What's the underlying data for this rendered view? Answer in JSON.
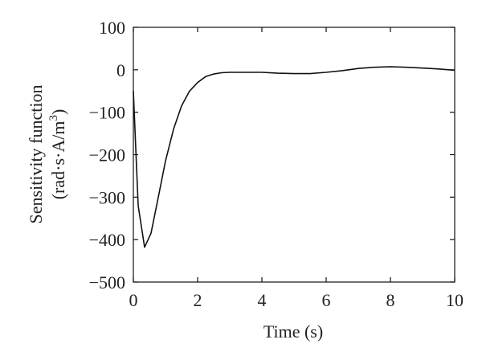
{
  "chart_data": {
    "type": "line",
    "xlabel": "Time (s)",
    "ylabel_line1": "Sensitivity function",
    "ylabel_line2_prefix": "(rad·s·A/m",
    "ylabel_line2_sup": "3",
    "ylabel_line2_suffix": ")",
    "xlim": [
      0,
      10
    ],
    "ylim": [
      -500,
      100
    ],
    "xticks": [
      0,
      2,
      4,
      6,
      8,
      10
    ],
    "xtick_labels": [
      "0",
      "2",
      "4",
      "6",
      "8",
      "10"
    ],
    "yticks": [
      100,
      0,
      -100,
      -200,
      -300,
      -400,
      -500
    ],
    "ytick_labels": [
      "100",
      "0",
      "−100",
      "−200",
      "−300",
      "−400",
      "−500"
    ],
    "grid": false,
    "series": [
      {
        "color": "#111111",
        "x": [
          0,
          0.15,
          0.35,
          0.55,
          0.75,
          1.0,
          1.25,
          1.5,
          1.75,
          2.0,
          2.25,
          2.5,
          2.75,
          3.0,
          3.2,
          3.5,
          4.0,
          4.5,
          5.0,
          5.5,
          6.0,
          6.5,
          7.0,
          7.5,
          8.0,
          8.5,
          9.0,
          9.5,
          10.0
        ],
        "y": [
          -50,
          -320,
          -418,
          -385,
          -310,
          -215,
          -140,
          -85,
          -50,
          -30,
          -16,
          -10,
          -7,
          -6,
          -6,
          -6,
          -6,
          -8,
          -9,
          -9,
          -6,
          -2,
          3,
          6,
          7,
          6,
          4,
          2,
          -1
        ]
      }
    ]
  }
}
